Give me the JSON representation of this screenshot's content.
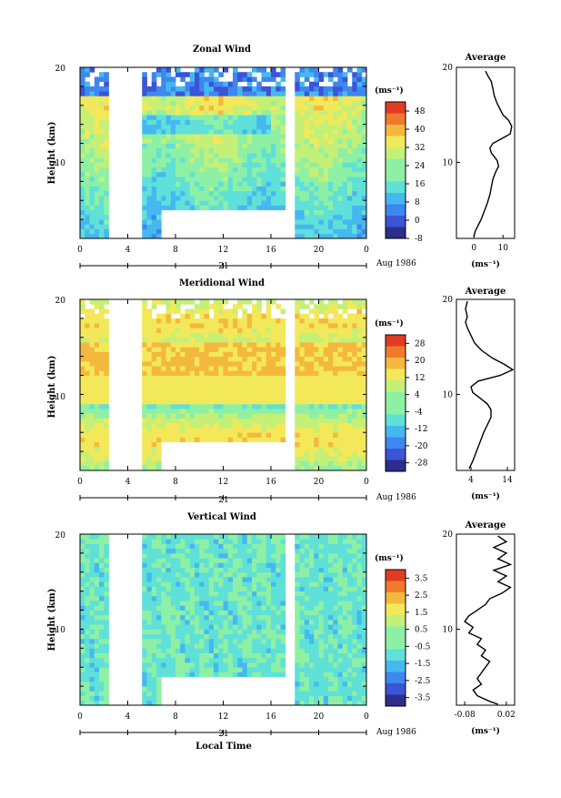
{
  "colors": {
    "sequential": [
      "#2c2d8c",
      "#3a55d6",
      "#3f87ee",
      "#46b8f0",
      "#5fe0d8",
      "#8ef0a4",
      "#c4f078",
      "#f2e85a",
      "#f5b83e",
      "#ef7a2e",
      "#e03c24"
    ]
  },
  "x_axis": {
    "ticks": [
      "0",
      "4",
      "8",
      "12",
      "16",
      "20",
      "0"
    ],
    "day_label": "21",
    "date_label": "Aug 1986",
    "xlabel": "Local Time"
  },
  "chart_data": [
    {
      "type": "heatmap",
      "title": "Zonal Wind",
      "ylabel": "Height (km)",
      "yticks": [
        "20",
        "10"
      ],
      "x": [
        0,
        24
      ],
      "ylim": [
        2,
        20
      ],
      "colorbar": {
        "unit": "(ms⁻¹)",
        "labels": [
          "48",
          "40",
          "32",
          "24",
          "16",
          "8",
          "0",
          "-8"
        ],
        "range": [
          -8,
          52
        ]
      },
      "profile": {
        "title": "Average",
        "yticks": [
          "20",
          "10"
        ],
        "xticks": [
          "0",
          "10"
        ],
        "xunit": "(ms⁻¹)",
        "xlim": [
          -6,
          14
        ],
        "points": [
          [
            4,
            19.6
          ],
          [
            5,
            19.0
          ],
          [
            6,
            18.5
          ],
          [
            6.5,
            17.8
          ],
          [
            7,
            17.0
          ],
          [
            8,
            16.2
          ],
          [
            9,
            15.6
          ],
          [
            10,
            15.0
          ],
          [
            12,
            14.4
          ],
          [
            13,
            13.8
          ],
          [
            12.5,
            13.0
          ],
          [
            9,
            12.4
          ],
          [
            6.5,
            12.0
          ],
          [
            5.5,
            11.5
          ],
          [
            6,
            11.0
          ],
          [
            7,
            10.6
          ],
          [
            8,
            10.2
          ],
          [
            8.5,
            9.6
          ],
          [
            7.5,
            9.0
          ],
          [
            6.5,
            8.2
          ],
          [
            6,
            7.4
          ],
          [
            5.5,
            6.6
          ],
          [
            4.5,
            5.6
          ],
          [
            3.5,
            4.8
          ],
          [
            2.5,
            4.0
          ],
          [
            1.5,
            3.4
          ],
          [
            0.5,
            2.8
          ],
          [
            0,
            2.2
          ]
        ]
      }
    },
    {
      "type": "heatmap",
      "title": "Meridional Wind",
      "ylabel": "Height (km)",
      "yticks": [
        "20",
        "10"
      ],
      "x": [
        0,
        24
      ],
      "ylim": [
        2,
        20
      ],
      "colorbar": {
        "unit": "(ms⁻¹)",
        "labels": [
          "28",
          "20",
          "12",
          "4",
          "-4",
          "-12",
          "-20",
          "-28"
        ],
        "range": [
          -32,
          32
        ]
      },
      "profile": {
        "title": "Average",
        "yticks": [
          "20",
          "10"
        ],
        "xticks": [
          "4",
          "14"
        ],
        "xunit": "(ms⁻¹)",
        "xlim": [
          0,
          16
        ],
        "points": [
          [
            3,
            19.8
          ],
          [
            2.5,
            19.0
          ],
          [
            3,
            18.2
          ],
          [
            2.5,
            17.6
          ],
          [
            3,
            17.0
          ],
          [
            4,
            16.2
          ],
          [
            5,
            15.4
          ],
          [
            7,
            14.6
          ],
          [
            10,
            13.8
          ],
          [
            13,
            13.2
          ],
          [
            15.5,
            12.6
          ],
          [
            12,
            12.0
          ],
          [
            6,
            11.4
          ],
          [
            4,
            10.8
          ],
          [
            4.5,
            10.2
          ],
          [
            6.5,
            9.6
          ],
          [
            8.5,
            9.0
          ],
          [
            9.5,
            8.4
          ],
          [
            9.5,
            7.6
          ],
          [
            8.5,
            6.8
          ],
          [
            7.5,
            6.0
          ],
          [
            6.5,
            5.0
          ],
          [
            5.5,
            4.0
          ],
          [
            4.5,
            3.0
          ],
          [
            3.5,
            2.2
          ]
        ]
      }
    },
    {
      "type": "heatmap",
      "title": "Vertical Wind",
      "ylabel": "Height (km)",
      "yticks": [
        "20",
        "10"
      ],
      "x": [
        0,
        24
      ],
      "ylim": [
        2,
        20
      ],
      "colorbar": {
        "unit": "(ms⁻¹)",
        "labels": [
          "3.5",
          "2.5",
          "1.5",
          "0.5",
          "-0.5",
          "-1.5",
          "-2.5",
          "-3.5"
        ],
        "range": [
          -4,
          4
        ]
      },
      "profile": {
        "title": "Average",
        "yticks": [
          "20",
          "10"
        ],
        "xticks": [
          "-0.08",
          "0.02"
        ],
        "xunit": "(ms⁻¹)",
        "xlim": [
          -0.1,
          0.04
        ],
        "points": [
          [
            0.0,
            19.8
          ],
          [
            0.02,
            19.2
          ],
          [
            -0.01,
            18.6
          ],
          [
            0.02,
            18.0
          ],
          [
            0.0,
            17.4
          ],
          [
            0.03,
            16.8
          ],
          [
            -0.01,
            16.2
          ],
          [
            0.02,
            15.6
          ],
          [
            0.0,
            15.0
          ],
          [
            0.03,
            14.4
          ],
          [
            0.01,
            13.8
          ],
          [
            -0.02,
            13.2
          ],
          [
            -0.03,
            12.6
          ],
          [
            -0.05,
            12.0
          ],
          [
            -0.07,
            11.4
          ],
          [
            -0.08,
            10.8
          ],
          [
            -0.06,
            10.2
          ],
          [
            -0.07,
            9.6
          ],
          [
            -0.04,
            9.0
          ],
          [
            -0.05,
            8.4
          ],
          [
            -0.03,
            7.8
          ],
          [
            -0.04,
            7.2
          ],
          [
            -0.02,
            6.6
          ],
          [
            -0.03,
            6.0
          ],
          [
            -0.04,
            5.4
          ],
          [
            -0.05,
            4.8
          ],
          [
            -0.04,
            4.2
          ],
          [
            -0.06,
            3.6
          ],
          [
            -0.05,
            3.0
          ],
          [
            -0.02,
            2.4
          ],
          [
            0.0,
            2.1
          ]
        ]
      }
    }
  ]
}
